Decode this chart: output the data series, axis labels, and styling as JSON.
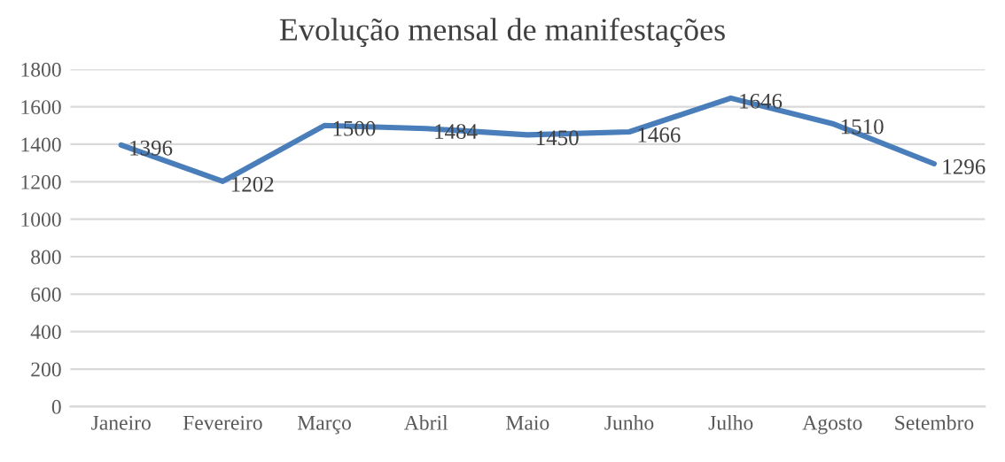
{
  "chart_data": {
    "type": "line",
    "title": "Evolução mensal de manifestações",
    "categories": [
      "Janeiro",
      "Fevereiro",
      "Março",
      "Abril",
      "Maio",
      "Junho",
      "Julho",
      "Agosto",
      "Setembro"
    ],
    "series": [
      {
        "color": "#4a7ebb",
        "values": [
          1396,
          1202,
          1500,
          1484,
          1450,
          1466,
          1646,
          1510,
          1296
        ]
      }
    ],
    "ylim": [
      0,
      1800
    ],
    "yticks": [
      0,
      200,
      400,
      600,
      800,
      1000,
      1200,
      1400,
      1600,
      1800
    ],
    "grid": "y",
    "data_labels": true,
    "marker": "none",
    "line_style": "solid",
    "legend": false
  }
}
